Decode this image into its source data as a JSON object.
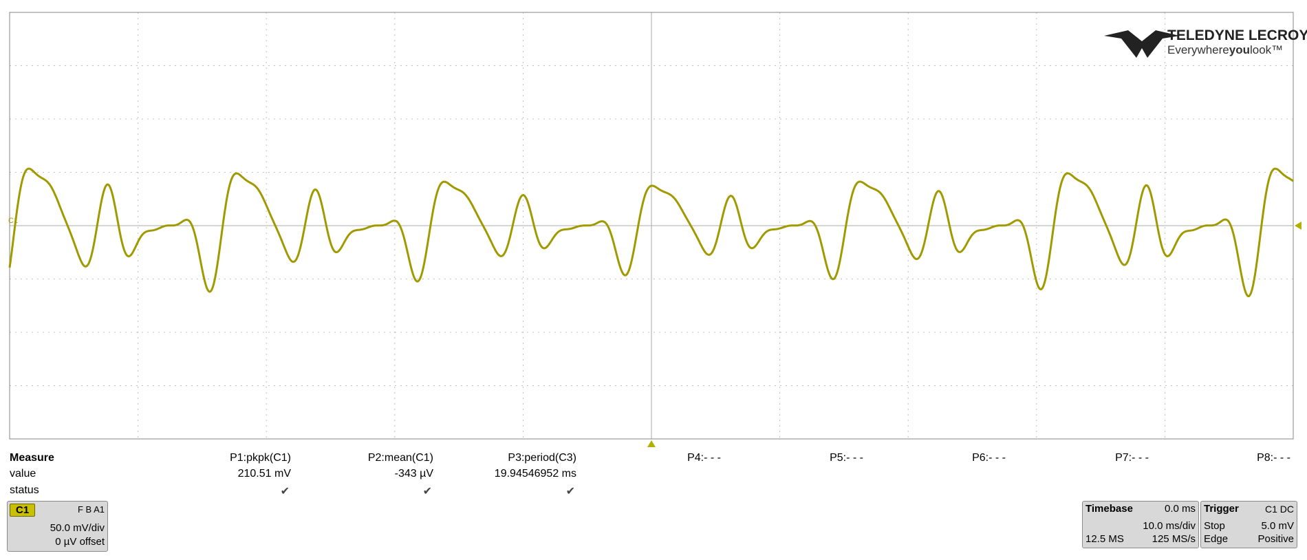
{
  "logo": {
    "brand": "TELEDYNE LECROY",
    "tagline_start": "Everywhere",
    "tagline_bold": "you",
    "tagline_end": "look™"
  },
  "channel_marker": "C1",
  "measure": {
    "headers": [
      "Measure",
      "value",
      "status"
    ],
    "params": [
      {
        "name": "P1:pkpk(C1)",
        "value": "210.51 mV",
        "status": "✔"
      },
      {
        "name": "P2:mean(C1)",
        "value": "-343 µV",
        "status": "✔"
      },
      {
        "name": "P3:period(C3)",
        "value": "19.94546952 ms",
        "status": "✔"
      },
      {
        "name": "P4:- - -"
      },
      {
        "name": "P5:- - -"
      },
      {
        "name": "P6:- - -"
      },
      {
        "name": "P7:- - -"
      },
      {
        "name": "P8:- - -"
      }
    ]
  },
  "channel": {
    "label": "C1",
    "flags": "F B A1",
    "scale": "50.0 mV/div",
    "offset": "0 µV offset"
  },
  "timebase": {
    "label": "Timebase",
    "delay": "0.0 ms",
    "scale": "10.0 ms/div",
    "samples": "12.5 MS",
    "rate": "125 MS/s"
  },
  "trigger": {
    "label": "Trigger",
    "source": "C1 DC",
    "mode": "Stop",
    "level": "5.0 mV",
    "type": "Edge",
    "slope": "Positive"
  }
}
